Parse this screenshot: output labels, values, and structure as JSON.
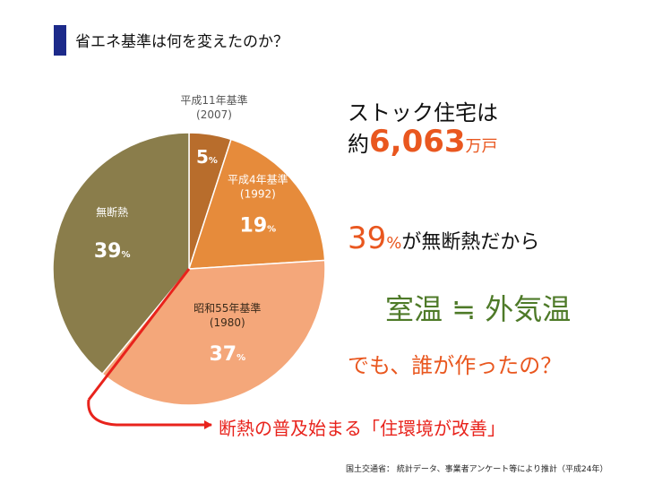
{
  "page": {
    "title": "省エネ基準は何を変えたのか？",
    "accent_colors": {
      "title_bar": "#1c2a8a",
      "highlight": "#e9571f",
      "temperature": "#4e7a28",
      "annotation": "#e8231c"
    }
  },
  "chart_data": {
    "type": "pie",
    "title": "",
    "slices": [
      {
        "label_lines": [
          "平成11年基準",
          "(2007)"
        ],
        "value": 5,
        "color": "#b86d2c"
      },
      {
        "label_lines": [
          "平成4年基準",
          "(1992)"
        ],
        "value": 19,
        "color": "#e68b3b"
      },
      {
        "label_lines": [
          "昭和55年基準",
          "(1980)"
        ],
        "value": 37,
        "color": "#f4a77a"
      },
      {
        "label_lines": [
          "無断熱"
        ],
        "value": 39,
        "color": "#8a7d4b"
      }
    ],
    "value_unit": "%",
    "start": "top",
    "direction": "clockwise"
  },
  "panel": {
    "stock_heading": "ストック住宅は",
    "stock_prefix": "約",
    "stock_number": "6,063",
    "stock_unit": "万戸",
    "pct_number": "39",
    "pct_unit": "%",
    "pct_text": "が無断熱だから",
    "temperature_line": "室温 ≒ 外気温",
    "question": "でも、誰が作ったの？"
  },
  "annotation": {
    "text": "断熱の普及始まる「住環境が改善」"
  },
  "source": "国土交通省： 統計データ、事業者アンケート等により推計（平成24年）"
}
